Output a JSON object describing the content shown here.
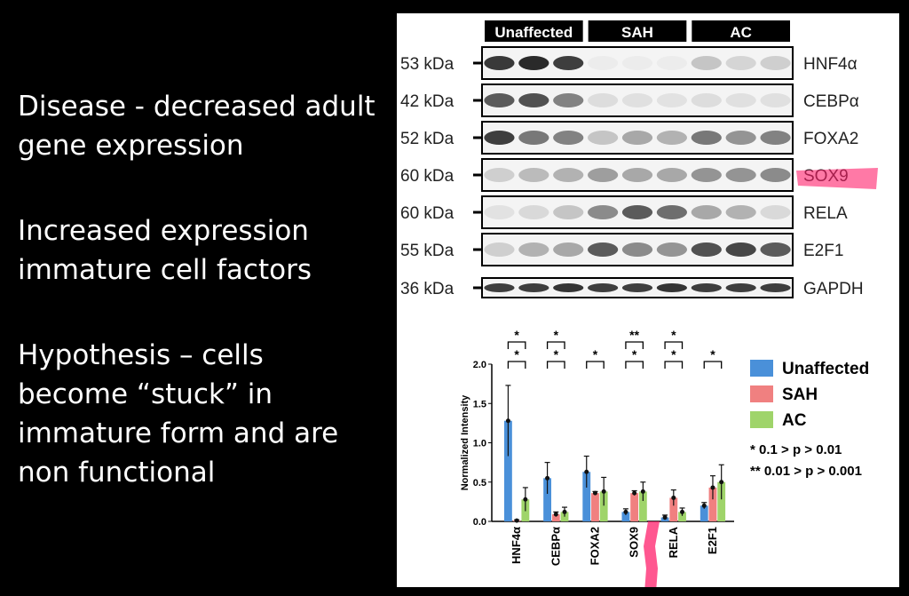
{
  "bullets": [
    "Disease - decreased adult gene expression",
    "Increased expression immature cell factors",
    "Hypothesis – cells become “stuck” in immature form and are non functional"
  ],
  "blot": {
    "groups": [
      "Unaffected",
      "SAH",
      "AC"
    ],
    "lanes_per_group": 3,
    "rows": [
      {
        "kda": "53 kDa",
        "protein": "HNF4α",
        "intensity": [
          0.92,
          1.0,
          0.9,
          0.0,
          0.0,
          0.0,
          0.2,
          0.12,
          0.15
        ]
      },
      {
        "kda": "42 kDa",
        "protein": "CEBPα",
        "intensity": [
          0.75,
          0.8,
          0.55,
          0.08,
          0.06,
          0.05,
          0.08,
          0.06,
          0.06
        ]
      },
      {
        "kda": "52 kDa",
        "protein": "FOXA2",
        "intensity": [
          0.9,
          0.6,
          0.55,
          0.2,
          0.35,
          0.3,
          0.6,
          0.45,
          0.55
        ]
      },
      {
        "kda": "60 kDa",
        "protein": "SOX9",
        "intensity": [
          0.15,
          0.25,
          0.3,
          0.4,
          0.35,
          0.35,
          0.45,
          0.45,
          0.5
        ]
      },
      {
        "kda": "60 kDa",
        "protein": "RELA",
        "intensity": [
          0.05,
          0.1,
          0.2,
          0.5,
          0.75,
          0.65,
          0.35,
          0.3,
          0.1
        ]
      },
      {
        "kda": "55 kDa",
        "protein": "E2F1",
        "intensity": [
          0.15,
          0.3,
          0.35,
          0.75,
          0.5,
          0.45,
          0.8,
          0.85,
          0.75
        ]
      },
      {
        "kda": "36 kDa",
        "protein": "GAPDH",
        "intensity": [
          0.9,
          0.9,
          0.95,
          0.9,
          0.9,
          0.95,
          0.9,
          0.9,
          0.9
        ]
      }
    ]
  },
  "chart_data": {
    "type": "bar",
    "ylabel": "Normalized Intensity",
    "ylim": [
      0,
      2.0
    ],
    "yticks": [
      "0.0",
      "0.5",
      "1.0",
      "1.5",
      "2.0"
    ],
    "categories": [
      "HNF4α",
      "CEBPα",
      "FOXA2",
      "SOX9",
      "RELA",
      "E2F1"
    ],
    "series": [
      {
        "name": "Unaffected",
        "color": "#4a90d9",
        "values": [
          1.28,
          0.55,
          0.63,
          0.12,
          0.05,
          0.2
        ],
        "errors": [
          0.45,
          0.2,
          0.2,
          0.04,
          0.03,
          0.04
        ]
      },
      {
        "name": "SAH",
        "color": "#f08080",
        "values": [
          0.01,
          0.09,
          0.36,
          0.36,
          0.3,
          0.43
        ],
        "errors": [
          0.01,
          0.03,
          0.02,
          0.03,
          0.1,
          0.15
        ]
      },
      {
        "name": "AC",
        "color": "#9fd46a",
        "values": [
          0.28,
          0.12,
          0.38,
          0.38,
          0.12,
          0.5
        ],
        "errors": [
          0.15,
          0.06,
          0.18,
          0.12,
          0.05,
          0.22
        ]
      }
    ],
    "significance": [
      {
        "category": 0,
        "labels": [
          "*",
          "*"
        ]
      },
      {
        "category": 1,
        "labels": [
          "*",
          "*"
        ]
      },
      {
        "category": 2,
        "labels": [
          "*"
        ]
      },
      {
        "category": 3,
        "labels": [
          "*",
          "**"
        ]
      },
      {
        "category": 4,
        "labels": [
          "*",
          "*"
        ]
      },
      {
        "category": 5,
        "labels": [
          "*"
        ]
      }
    ],
    "legend_position": "right",
    "notes": [
      "* 0.1 > p > 0.01",
      "** 0.01 > p > 0.001"
    ]
  }
}
